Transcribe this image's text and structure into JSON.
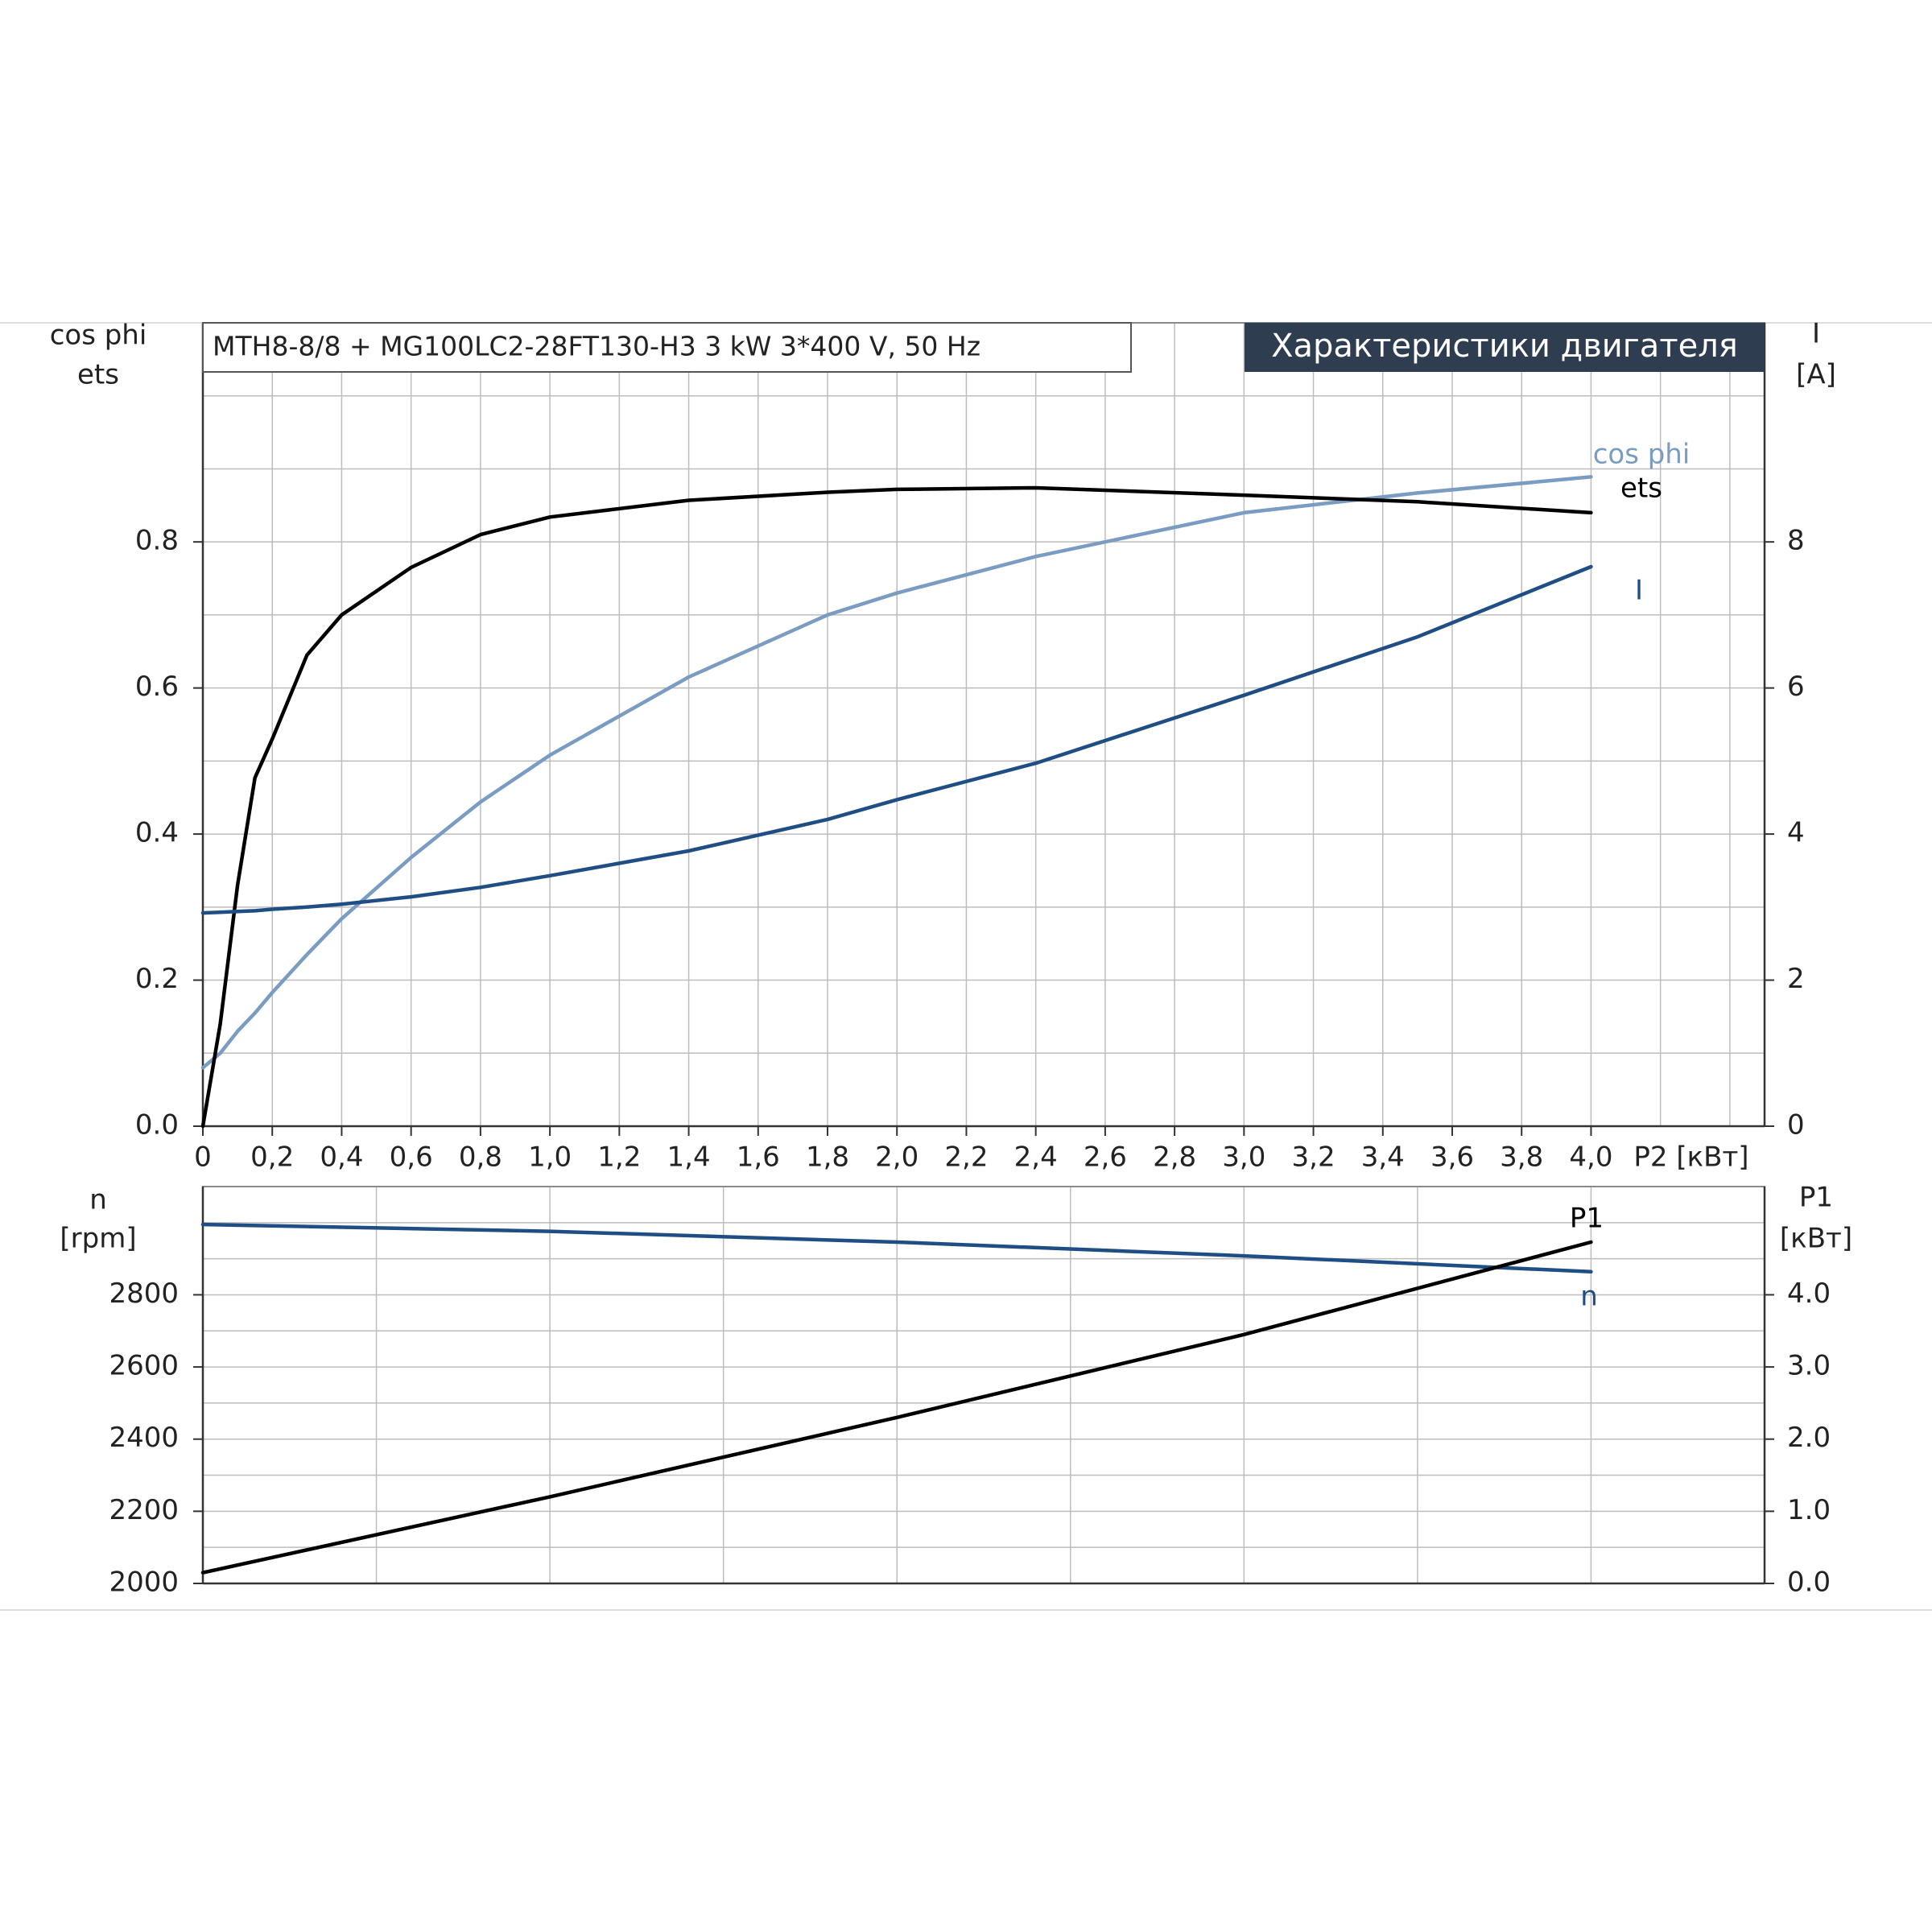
{
  "chart_data": [
    {
      "type": "line",
      "title": "MTH8-8/8 + MG100LC2-28FT130-H3   3 kW   3*400 V, 50 Hz",
      "heading": "Характеристики двигателя",
      "ylabel_lines": [
        "cos phi",
        "ets"
      ],
      "y2label_lines": [
        "I",
        "[A]"
      ],
      "xlabel": "P2 [кВт]",
      "xlim": [
        0,
        4.5
      ],
      "xticks": [
        0,
        {
          "value": 0.2,
          "label": "0,2"
        },
        {
          "value": 0.4,
          "label": "0,4"
        },
        {
          "value": 0.6,
          "label": "0,6"
        },
        {
          "value": 0.8,
          "label": "0,8"
        },
        {
          "value": 1.0,
          "label": "1,0"
        },
        {
          "value": 1.2,
          "label": "1,2"
        },
        {
          "value": 1.4,
          "label": "1,4"
        },
        {
          "value": 1.6,
          "label": "1,6"
        },
        {
          "value": 1.8,
          "label": "1,8"
        },
        {
          "value": 2.0,
          "label": "2,0"
        },
        {
          "value": 2.2,
          "label": "2,2"
        },
        {
          "value": 2.4,
          "label": "2,4"
        },
        {
          "value": 2.6,
          "label": "2,6"
        },
        {
          "value": 2.8,
          "label": "2,8"
        },
        {
          "value": 3.0,
          "label": "3,0"
        },
        {
          "value": 3.2,
          "label": "3,2"
        },
        {
          "value": 3.4,
          "label": "3,4"
        },
        {
          "value": 3.6,
          "label": "3,6"
        },
        {
          "value": 3.8,
          "label": "3,8"
        },
        {
          "value": 4.0,
          "label": "4,0"
        }
      ],
      "xgrid": [
        0.2,
        0.4,
        0.6,
        0.8,
        1.0,
        1.2,
        1.4,
        1.6,
        1.8,
        2.0,
        2.2,
        2.4,
        2.6,
        2.8,
        3.0,
        3.2,
        3.4,
        3.6,
        3.8,
        4.0,
        4.2,
        4.4
      ],
      "ylim": [
        0,
        1.1
      ],
      "yticks": [
        {
          "value": 0,
          "label": "0.0"
        },
        0.2,
        0.4,
        0.6,
        0.8
      ],
      "ygrid": [
        0.1,
        0.2,
        0.3,
        0.4,
        0.5,
        0.6,
        0.7,
        0.8,
        0.9,
        1.0
      ],
      "y2lim": [
        0,
        11
      ],
      "y2ticks": [
        0,
        2,
        4,
        6,
        8
      ],
      "grid": true,
      "x": [
        0,
        0.05,
        0.1,
        0.15,
        0.2,
        0.3,
        0.4,
        0.6,
        0.8,
        1.0,
        1.4,
        1.8,
        2.0,
        2.4,
        3.0,
        3.5,
        4.0
      ],
      "series": [
        {
          "name": "cos phi",
          "color": "#7b9cc2",
          "values": [
            0.08,
            0.1,
            0.13,
            0.155,
            0.183,
            0.235,
            0.284,
            0.368,
            0.444,
            0.508,
            0.615,
            0.7,
            0.73,
            0.78,
            0.84,
            0.867,
            0.889
          ]
        },
        {
          "name": "ets",
          "color": "#000000",
          "values": [
            0,
            0.14,
            0.33,
            0.477,
            0.53,
            0.645,
            0.7,
            0.765,
            0.81,
            0.834,
            0.857,
            0.868,
            0.872,
            0.874,
            0.864,
            0.855,
            0.84
          ]
        },
        {
          "name": "I",
          "color": "#1f4e85",
          "axis": "y2",
          "values": [
            2.92,
            2.93,
            2.94,
            2.95,
            2.97,
            3.0,
            3.04,
            3.14,
            3.27,
            3.43,
            3.77,
            4.2,
            4.47,
            4.97,
            5.9,
            6.7,
            7.66
          ]
        }
      ]
    },
    {
      "type": "line",
      "ylabel_lines": [
        "n",
        "[rpm]"
      ],
      "y2label_lines": [
        "P1",
        "[кВт]"
      ],
      "xlim": [
        0,
        4.5
      ],
      "xgrid": [
        0.5,
        1.0,
        1.5,
        2.0,
        2.5,
        3.0,
        3.5,
        4.0
      ],
      "ylim": [
        2000,
        3100
      ],
      "yticks": [
        2000,
        2200,
        2400,
        2600,
        2800
      ],
      "ygrid": [
        2100,
        2200,
        2300,
        2400,
        2500,
        2600,
        2700,
        2800,
        2900,
        3000
      ],
      "y2lim": [
        0,
        5.5
      ],
      "y2ticks": [
        {
          "value": 0,
          "label": "0.0"
        },
        {
          "value": 1,
          "label": "1.0"
        },
        {
          "value": 2,
          "label": "2.0"
        },
        {
          "value": 3,
          "label": "3.0"
        },
        {
          "value": 4,
          "label": "4.0"
        }
      ],
      "grid": true,
      "x": [
        0,
        1,
        2,
        3,
        4
      ],
      "series": [
        {
          "name": "n",
          "color": "#1f4e85",
          "values": [
            2995,
            2976,
            2946,
            2908,
            2864
          ]
        },
        {
          "name": "P1",
          "color": "#000000",
          "axis": "y2",
          "values": [
            0.15,
            1.2,
            2.3,
            3.45,
            4.73
          ]
        }
      ]
    }
  ]
}
